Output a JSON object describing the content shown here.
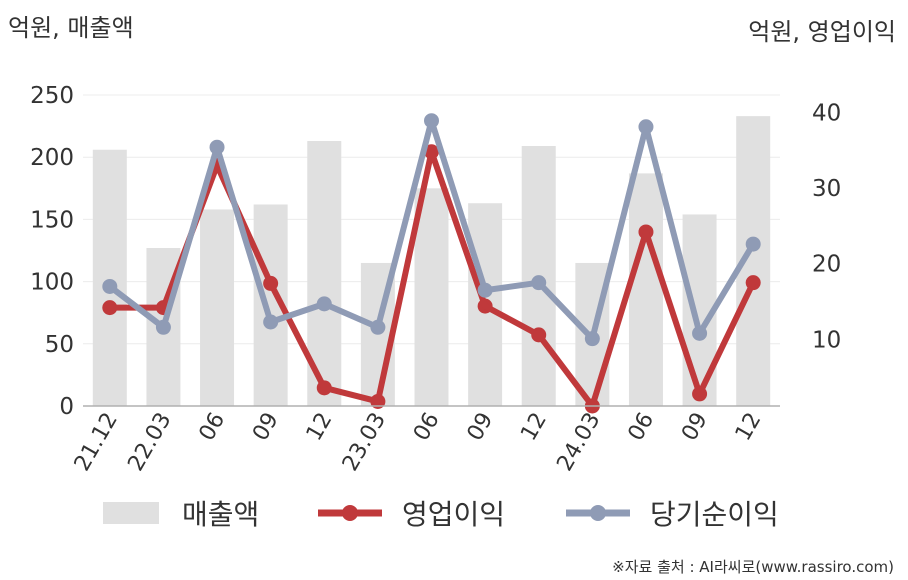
{
  "chart_data": {
    "type": "bar+line",
    "left_axis_unit": "억원, 매출액",
    "right_axis_unit": "억원, 영업이익",
    "categories": [
      "21.12",
      "22.03",
      "06",
      "09",
      "12",
      "23.03",
      "06",
      "09",
      "12",
      "24.03",
      "06",
      "09",
      "12"
    ],
    "left_ylim": [
      0,
      250
    ],
    "left_yticks": [
      0,
      50,
      100,
      150,
      200,
      250
    ],
    "right_ylim": [
      1.2,
      42.3
    ],
    "right_yticks": [
      10,
      20,
      30,
      40
    ],
    "series": [
      {
        "name": "매출액",
        "type": "bar",
        "axis": "left",
        "color": "#e0e0e0",
        "values": [
          206,
          127,
          158,
          162,
          213,
          115,
          175,
          163,
          209,
          115,
          187,
          154,
          233
        ]
      },
      {
        "name": "영업이익",
        "type": "line",
        "axis": "right",
        "color": "#c0393b",
        "values": [
          14.2,
          14.2,
          33.0,
          17.4,
          3.6,
          1.8,
          34.8,
          14.4,
          10.6,
          1.2,
          24.2,
          2.8,
          17.5
        ]
      },
      {
        "name": "당기순이익",
        "type": "line",
        "axis": "right",
        "color": "#8f9bb5",
        "values": [
          17.0,
          11.6,
          35.4,
          12.3,
          14.7,
          11.6,
          38.9,
          16.5,
          17.5,
          10.1,
          38.1,
          10.8,
          22.6
        ]
      }
    ],
    "grid": true,
    "legend": "bottom"
  },
  "source_text": "※자료 출처 : AI라씨로(www.rassiro.com)"
}
